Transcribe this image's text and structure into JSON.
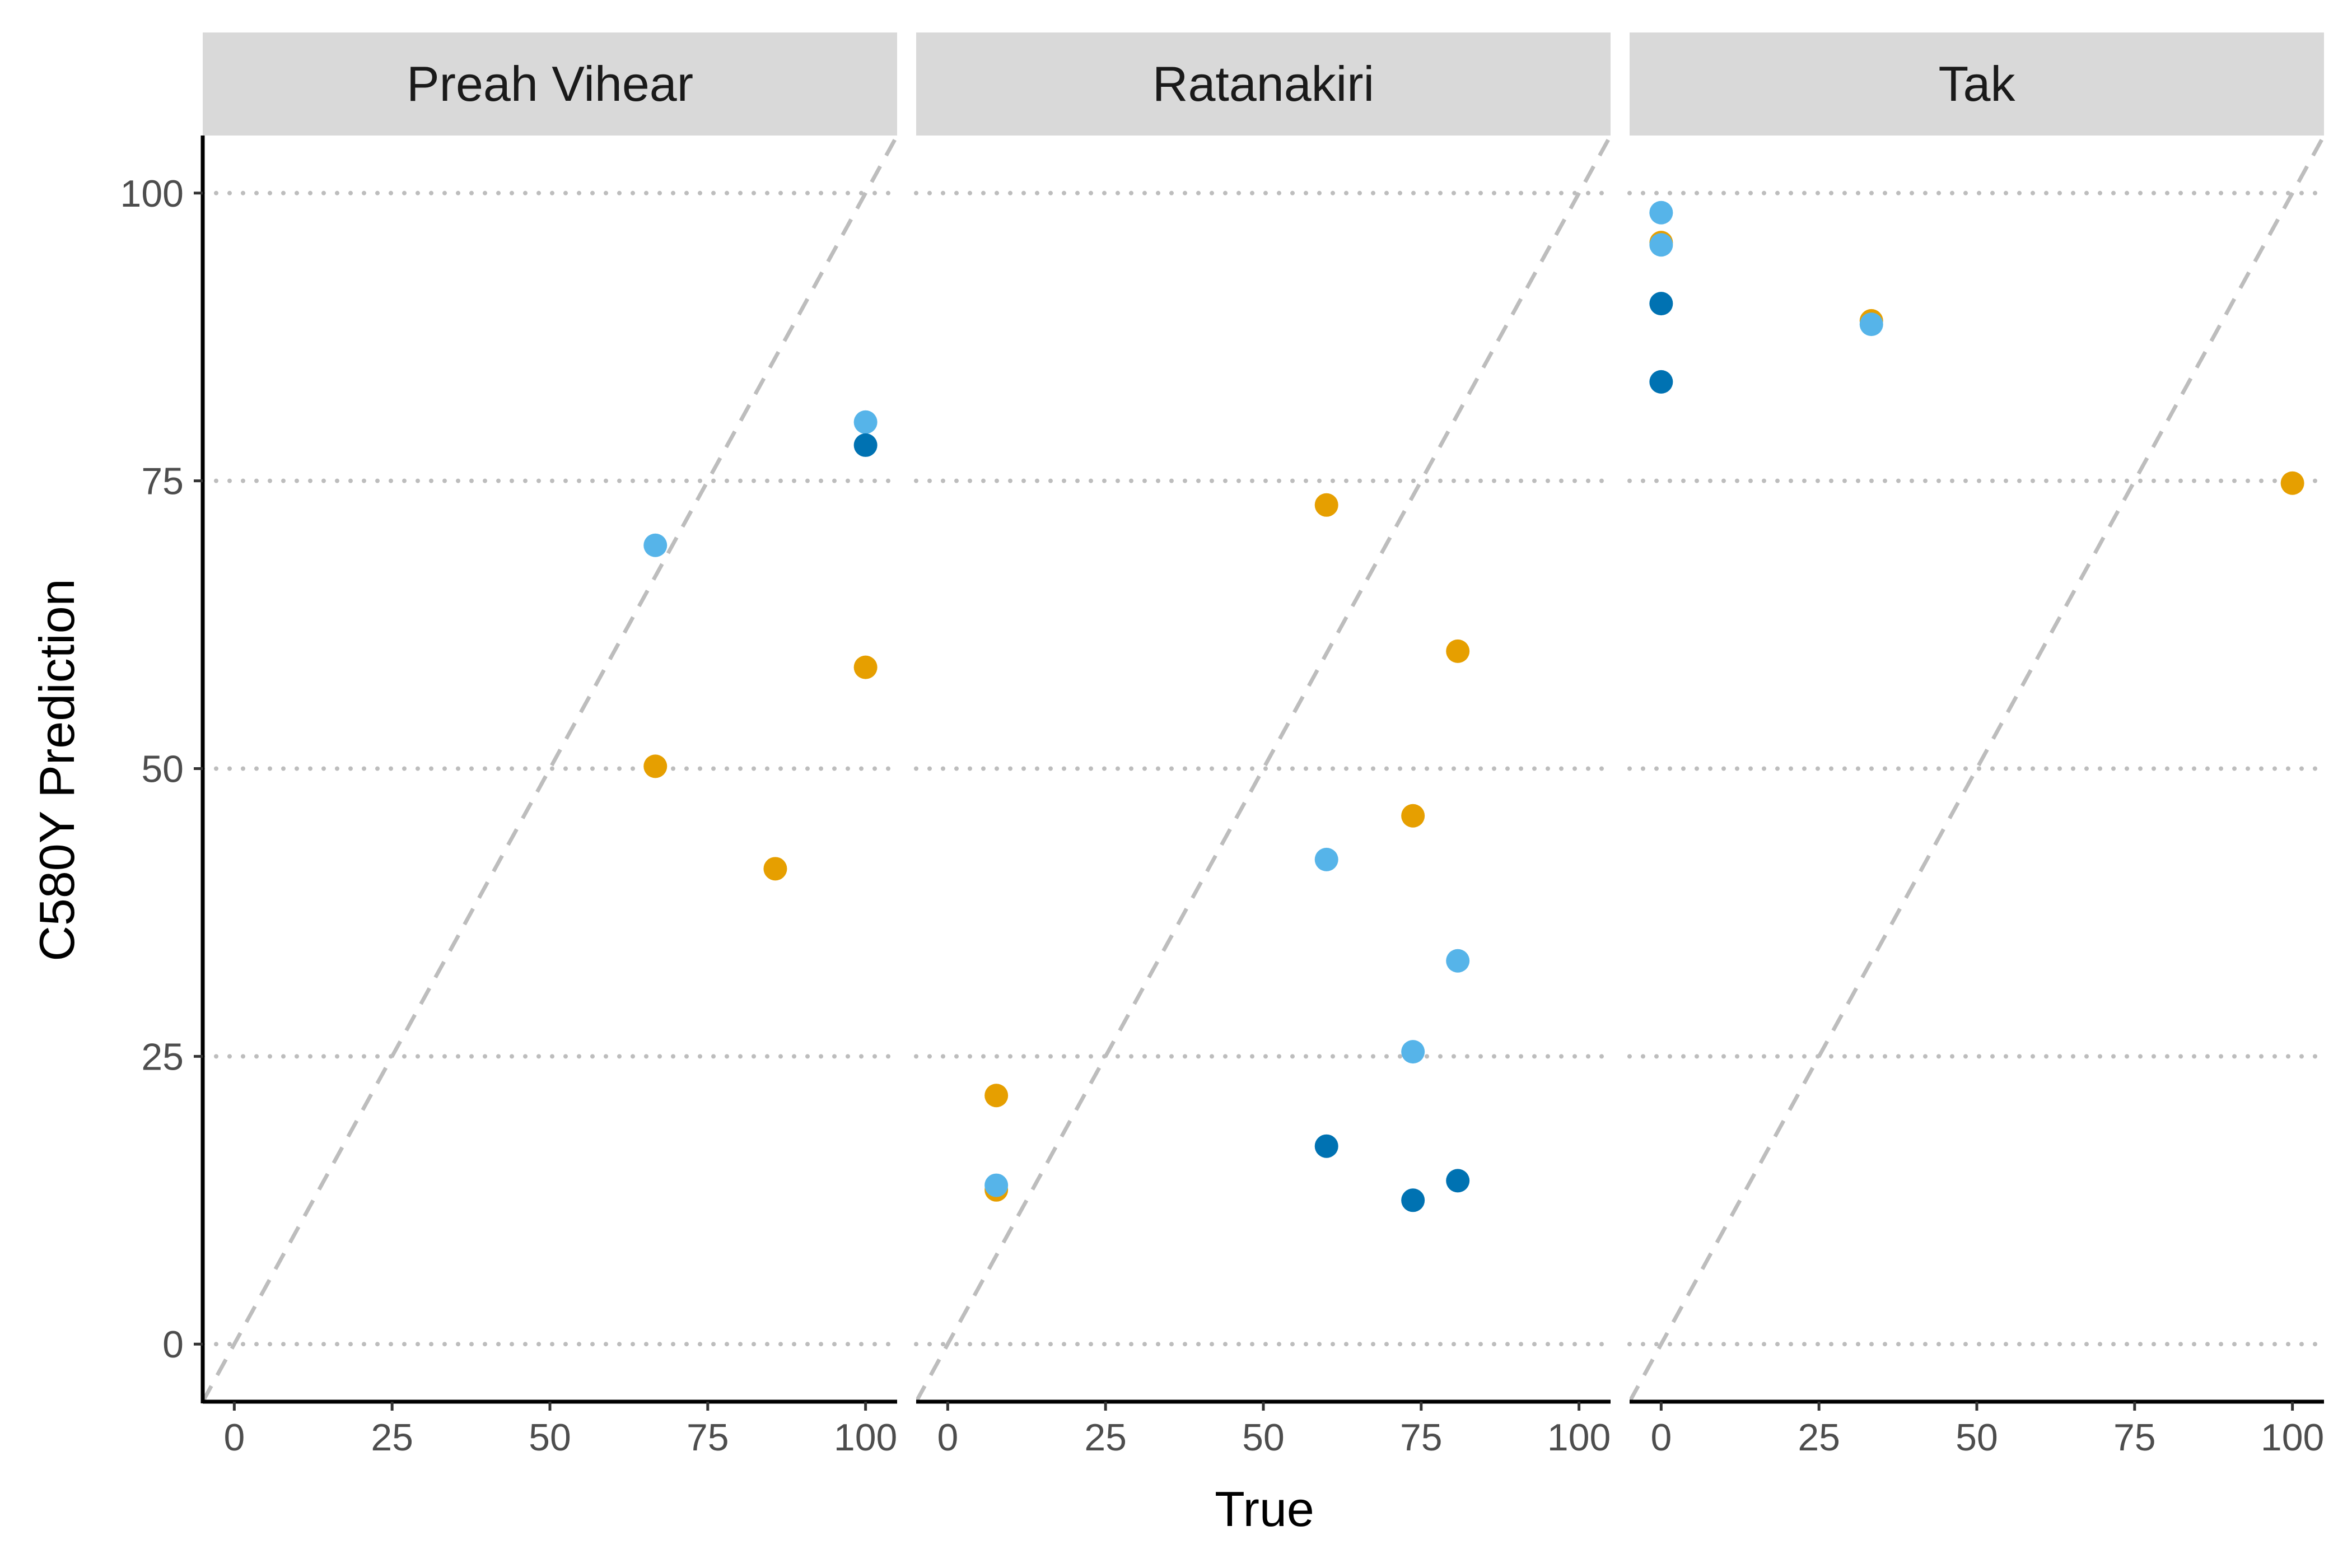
{
  "chart_data": {
    "type": "scatter",
    "xlabel": "True",
    "ylabel": "C580Y Prediction",
    "xlim": [
      -5,
      105
    ],
    "ylim": [
      -5,
      105
    ],
    "xticks": [
      0,
      25,
      50,
      75,
      100
    ],
    "yticks": [
      0,
      25,
      50,
      75,
      100
    ],
    "grid": "horizontal dotted",
    "reference_line": "y = x (dashed)",
    "colors": {
      "orange": "#E69F00",
      "light_blue": "#56B4E9",
      "dark_blue": "#0072B2"
    },
    "panels": [
      {
        "title": "Preah Vihear",
        "points": [
          {
            "x": 66.7,
            "y": 50.2,
            "color": "orange"
          },
          {
            "x": 85.7,
            "y": 41.3,
            "color": "orange"
          },
          {
            "x": 100,
            "y": 58.8,
            "color": "orange"
          },
          {
            "x": 66.7,
            "y": 69.4,
            "color": "light_blue"
          },
          {
            "x": 100,
            "y": 80.1,
            "color": "light_blue"
          },
          {
            "x": 100,
            "y": 78.1,
            "color": "dark_blue"
          }
        ]
      },
      {
        "title": "Ratanakiri",
        "points": [
          {
            "x": 7.7,
            "y": 21.6,
            "color": "orange"
          },
          {
            "x": 7.7,
            "y": 13.4,
            "color": "orange"
          },
          {
            "x": 60,
            "y": 72.9,
            "color": "orange"
          },
          {
            "x": 73.7,
            "y": 45.9,
            "color": "orange"
          },
          {
            "x": 80.8,
            "y": 60.2,
            "color": "orange"
          },
          {
            "x": 7.7,
            "y": 13.8,
            "color": "light_blue"
          },
          {
            "x": 60,
            "y": 42.1,
            "color": "light_blue"
          },
          {
            "x": 73.7,
            "y": 25.4,
            "color": "light_blue"
          },
          {
            "x": 80.8,
            "y": 33.3,
            "color": "light_blue"
          },
          {
            "x": 60,
            "y": 17.2,
            "color": "dark_blue"
          },
          {
            "x": 73.7,
            "y": 12.5,
            "color": "dark_blue"
          },
          {
            "x": 80.8,
            "y": 14.2,
            "color": "dark_blue"
          }
        ]
      },
      {
        "title": "Tak",
        "points": [
          {
            "x": 0,
            "y": 95.7,
            "color": "orange"
          },
          {
            "x": 33.3,
            "y": 88.9,
            "color": "orange"
          },
          {
            "x": 100,
            "y": 74.8,
            "color": "orange"
          },
          {
            "x": 0,
            "y": 98.3,
            "color": "light_blue"
          },
          {
            "x": 0,
            "y": 95.5,
            "color": "light_blue"
          },
          {
            "x": 33.3,
            "y": 88.6,
            "color": "light_blue"
          },
          {
            "x": 0,
            "y": 90.4,
            "color": "dark_blue"
          },
          {
            "x": 0,
            "y": 83.6,
            "color": "dark_blue"
          }
        ]
      }
    ]
  }
}
